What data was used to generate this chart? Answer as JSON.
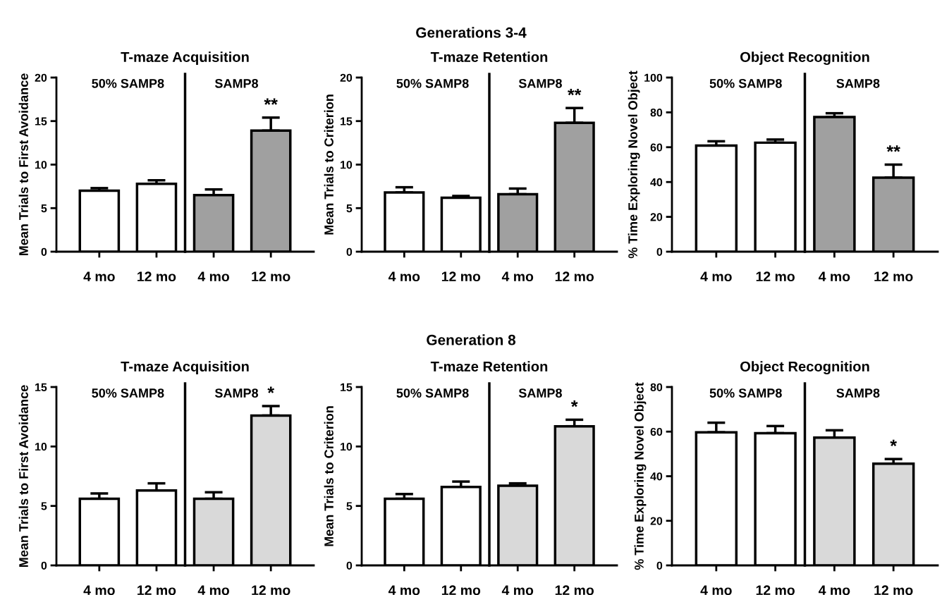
{
  "chart_data": [
    {
      "type": "bar",
      "title": "T-maze Acquisition",
      "ylabel": "Mean Trials to First Avoidance",
      "categories": [
        "4 mo",
        "12 mo",
        "4 mo",
        "12 mo"
      ],
      "values": [
        7.0,
        7.8,
        6.5,
        13.9
      ],
      "errors": [
        0.3,
        0.4,
        0.65,
        1.5
      ],
      "colors": [
        "#ffffff",
        "#ffffff",
        "#a0a0a0",
        "#a0a0a0"
      ],
      "ylim": [
        0,
        20
      ],
      "yticks": [
        0,
        5,
        10,
        15,
        20
      ],
      "annotations": [
        "50% SAMP8",
        "SAMP8",
        "**",
        "Generations 3-4"
      ]
    },
    {
      "type": "bar",
      "title": "T-maze Retention",
      "ylabel": "Mean Trials to Criterion",
      "categories": [
        "4 mo",
        "12 mo",
        "4 mo",
        "12 mo"
      ],
      "values": [
        6.8,
        6.2,
        6.6,
        14.8
      ],
      "errors": [
        0.6,
        0.2,
        0.65,
        1.7
      ],
      "colors": [
        "#ffffff",
        "#ffffff",
        "#a0a0a0",
        "#a0a0a0"
      ],
      "ylim": [
        0,
        20
      ],
      "yticks": [
        0,
        5,
        10,
        15,
        20
      ],
      "annotations": [
        "50% SAMP8",
        "SAMP8",
        "**"
      ]
    },
    {
      "type": "bar",
      "title": "Object Recognition",
      "ylabel": "% Time Exploring Novel Object",
      "categories": [
        "4 mo",
        "12 mo",
        "4 mo",
        "12 mo"
      ],
      "values": [
        60.9,
        62.6,
        77.3,
        42.5
      ],
      "errors": [
        2.5,
        1.8,
        2.2,
        7.5
      ],
      "colors": [
        "#ffffff",
        "#ffffff",
        "#a0a0a0",
        "#a0a0a0"
      ],
      "ylim": [
        0,
        100
      ],
      "yticks": [
        0,
        20,
        40,
        60,
        80,
        100
      ],
      "annotations": [
        "50% SAMP8",
        "SAMP8",
        "**"
      ]
    },
    {
      "type": "bar",
      "title": "T-maze Acquisition",
      "ylabel": "Mean Trials to First Avoidance",
      "categories": [
        "4 mo",
        "12 mo",
        "4 mo",
        "12 mo"
      ],
      "values": [
        5.6,
        6.3,
        5.6,
        12.6
      ],
      "errors": [
        0.45,
        0.6,
        0.55,
        0.8
      ],
      "colors": [
        "#ffffff",
        "#ffffff",
        "#d9d9d9",
        "#d9d9d9"
      ],
      "ylim": [
        0,
        15
      ],
      "yticks": [
        0,
        5,
        10,
        15
      ],
      "annotations": [
        "50% SAMP8",
        "SAMP8",
        "*",
        "Generation 8"
      ]
    },
    {
      "type": "bar",
      "title": "T-maze Retention",
      "ylabel": "Mean Trials to Criterion",
      "categories": [
        "4 mo",
        "12 mo",
        "4 mo",
        "12 mo"
      ],
      "values": [
        5.6,
        6.6,
        6.7,
        11.7
      ],
      "errors": [
        0.4,
        0.45,
        0.2,
        0.55
      ],
      "colors": [
        "#ffffff",
        "#ffffff",
        "#d9d9d9",
        "#d9d9d9"
      ],
      "ylim": [
        0,
        15
      ],
      "yticks": [
        0,
        5,
        10,
        15
      ],
      "annotations": [
        "50% SAMP8",
        "SAMP8",
        "*"
      ]
    },
    {
      "type": "bar",
      "title": "Object Recognition",
      "ylabel": "% Time Exploring Novel Object",
      "categories": [
        "4 mo",
        "12 mo",
        "4 mo",
        "12 mo"
      ],
      "values": [
        59.7,
        59.3,
        57.3,
        45.6
      ],
      "errors": [
        4.3,
        3.2,
        3.3,
        2.1
      ],
      "colors": [
        "#ffffff",
        "#ffffff",
        "#d9d9d9",
        "#d9d9d9"
      ],
      "ylim": [
        0,
        80
      ],
      "yticks": [
        0,
        20,
        40,
        60,
        80
      ],
      "annotations": [
        "50% SAMP8",
        "SAMP8",
        "*"
      ]
    }
  ]
}
